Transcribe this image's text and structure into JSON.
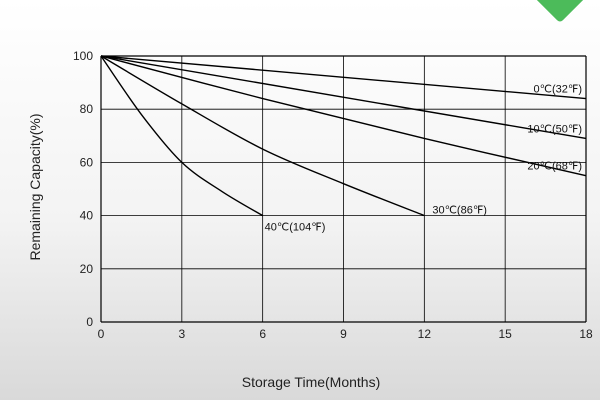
{
  "chart_data": {
    "type": "line",
    "title": "",
    "xlabel": "Storage Time(Months)",
    "ylabel": "Remaining Capacity(%)",
    "xlim": [
      0,
      18
    ],
    "ylim": [
      0,
      100
    ],
    "x_ticks": [
      0,
      3,
      6,
      9,
      12,
      15,
      18
    ],
    "y_ticks": [
      0,
      20,
      40,
      60,
      80,
      100
    ],
    "grid": true,
    "series": [
      {
        "name": "0℃(32℉)",
        "x": [
          0,
          18
        ],
        "y": [
          100,
          84
        ]
      },
      {
        "name": "10℃(50℉)",
        "x": [
          0,
          18
        ],
        "y": [
          100,
          69
        ]
      },
      {
        "name": "20℃(68℉)",
        "x": [
          0,
          6,
          12,
          18
        ],
        "y": [
          100,
          84,
          69,
          55
        ]
      },
      {
        "name": "30℃(86℉)",
        "x": [
          0,
          3,
          6,
          9,
          12
        ],
        "y": [
          100,
          82,
          65,
          52,
          40
        ]
      },
      {
        "name": "40℃(104℉)",
        "x": [
          0,
          1.5,
          3,
          4.5,
          6
        ],
        "y": [
          100,
          78,
          60,
          49,
          40
        ]
      }
    ]
  },
  "colors": {
    "line": "#000000",
    "grid": "#000000",
    "accent": "#4cbb5a"
  }
}
